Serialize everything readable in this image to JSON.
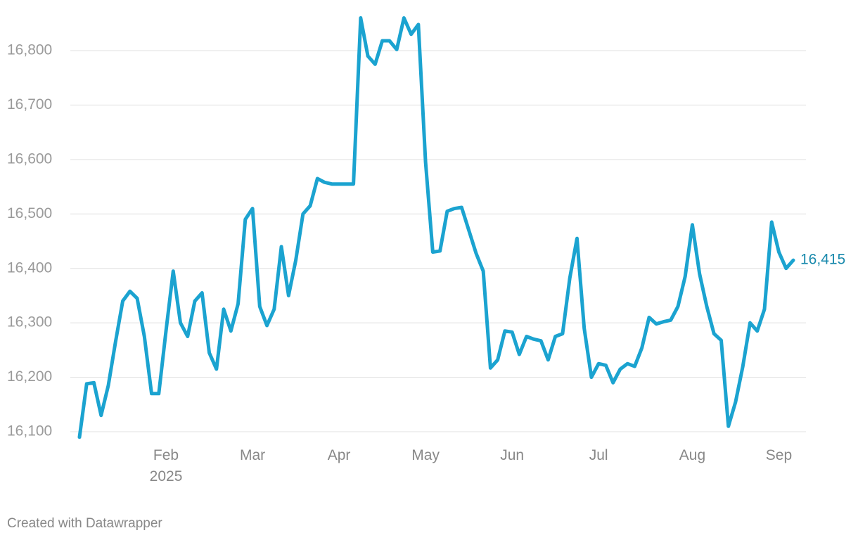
{
  "chart_data": {
    "type": "line",
    "categories": [
      null,
      null,
      null,
      null,
      null,
      null,
      null,
      null,
      null,
      null,
      null,
      null,
      "Feb 2025",
      null,
      null,
      null,
      null,
      null,
      null,
      null,
      null,
      null,
      null,
      null,
      "Mar",
      null,
      null,
      null,
      null,
      null,
      null,
      null,
      null,
      null,
      null,
      null,
      "Apr",
      null,
      null,
      null,
      null,
      null,
      null,
      null,
      null,
      null,
      null,
      null,
      "May",
      null,
      null,
      null,
      null,
      null,
      null,
      null,
      null,
      null,
      null,
      null,
      "Jun",
      null,
      null,
      null,
      null,
      null,
      null,
      null,
      null,
      null,
      null,
      null,
      "Jul",
      null,
      null,
      null,
      null,
      null,
      null,
      null,
      null,
      null,
      null,
      null,
      null,
      "Aug",
      null,
      null,
      null,
      null,
      null,
      null,
      null,
      null,
      null,
      null,
      null,
      "Sep",
      null,
      null
    ],
    "series": [
      {
        "color": "#1ba3d0",
        "label_color": "#1a8aad",
        "values": [
          16090,
          16188,
          16190,
          16130,
          16185,
          16265,
          16340,
          16358,
          16345,
          16275,
          16170,
          16170,
          16285,
          16395,
          16300,
          16275,
          16340,
          16355,
          16245,
          16215,
          16325,
          16285,
          16335,
          16490,
          16510,
          16330,
          16295,
          16325,
          16440,
          16350,
          16415,
          16500,
          16515,
          16565,
          16558,
          16555,
          16555,
          16555,
          16555,
          16860,
          16790,
          16775,
          16818,
          16818,
          16802,
          16860,
          16830,
          16848,
          16595,
          16430,
          16432,
          16505,
          16510,
          16512,
          16470,
          16428,
          16395,
          16217,
          16232,
          16285,
          16283,
          16242,
          16275,
          16270,
          16267,
          16232,
          16275,
          16280,
          16382,
          16455,
          16290,
          16200,
          16225,
          16222,
          16190,
          16215,
          16225,
          16220,
          16254,
          16310,
          16298,
          16302,
          16305,
          16330,
          16385,
          16480,
          16390,
          16330,
          16280,
          16268,
          16110,
          16155,
          16220,
          16300,
          16285,
          16325,
          16485,
          16430,
          16400,
          16415
        ],
        "value_labels": [
          null,
          null,
          null,
          null,
          null,
          null,
          null,
          null,
          null,
          null,
          null,
          null,
          null,
          null,
          null,
          null,
          null,
          null,
          null,
          null,
          null,
          null,
          null,
          null,
          null,
          null,
          null,
          null,
          null,
          null,
          null,
          null,
          null,
          null,
          null,
          null,
          null,
          null,
          null,
          null,
          null,
          null,
          null,
          null,
          null,
          null,
          null,
          null,
          null,
          null,
          null,
          null,
          null,
          null,
          null,
          null,
          null,
          null,
          null,
          null,
          null,
          null,
          null,
          null,
          null,
          null,
          null,
          null,
          null,
          null,
          null,
          null,
          null,
          null,
          null,
          null,
          null,
          null,
          null,
          null,
          null,
          null,
          null,
          null,
          null,
          null,
          null,
          null,
          null,
          null,
          null,
          null,
          null,
          null,
          null,
          null,
          null,
          null,
          null,
          "16,415"
        ]
      }
    ],
    "ylim": [
      16080,
      16870
    ],
    "yticks": [
      {
        "value": 16100,
        "label": "16,100"
      },
      {
        "value": 16200,
        "label": "16,200"
      },
      {
        "value": 16300,
        "label": "16,300"
      },
      {
        "value": 16400,
        "label": "16,400"
      },
      {
        "value": 16500,
        "label": "16,500"
      },
      {
        "value": 16600,
        "label": "16,600"
      },
      {
        "value": 16700,
        "label": "16,700"
      },
      {
        "value": 16800,
        "label": "16,800"
      }
    ],
    "grid": true,
    "footer": "Created with Datawrapper"
  }
}
